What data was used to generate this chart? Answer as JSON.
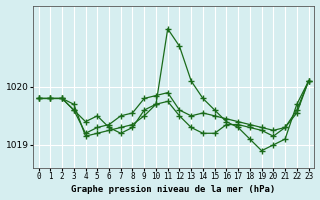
{
  "title": "Graphe pression niveau de la mer (hPa)",
  "bg_color": "#d6eef0",
  "grid_color": "#ffffff",
  "line_color": "#1a6b1a",
  "x_labels": [
    "0",
    "1",
    "2",
    "3",
    "4",
    "5",
    "6",
    "7",
    "8",
    "9",
    "10",
    "11",
    "12",
    "13",
    "14",
    "15",
    "16",
    "17",
    "18",
    "19",
    "20",
    "21",
    "22",
    "23"
  ],
  "ylim": [
    1018.6,
    1021.4
  ],
  "yticks": [
    1019,
    1020
  ],
  "series1": [
    1019.8,
    1019.8,
    1019.8,
    1019.6,
    1019.4,
    1019.5,
    1019.3,
    1019.2,
    1019.3,
    1019.6,
    1019.7,
    1021.0,
    1020.7,
    1020.1,
    1019.8,
    1019.6,
    1019.4,
    1019.3,
    1019.1,
    1018.9,
    1019.0,
    1019.1,
    1019.7,
    1020.1
  ],
  "series2": [
    1019.8,
    1019.8,
    1019.8,
    1019.6,
    1019.2,
    1019.3,
    1019.35,
    1019.5,
    1019.55,
    1019.8,
    1019.85,
    1019.9,
    1019.6,
    1019.5,
    1019.55,
    1019.5,
    1019.45,
    1019.4,
    1019.35,
    1019.3,
    1019.25,
    1019.3,
    1019.55,
    1020.1
  ],
  "series3": [
    1019.8,
    1019.8,
    1019.8,
    1019.7,
    1019.15,
    1019.2,
    1019.25,
    1019.3,
    1019.35,
    1019.5,
    1019.7,
    1019.75,
    1019.5,
    1019.3,
    1019.2,
    1019.2,
    1019.35,
    1019.35,
    1019.3,
    1019.25,
    1019.15,
    1019.3,
    1019.6,
    1020.1
  ]
}
